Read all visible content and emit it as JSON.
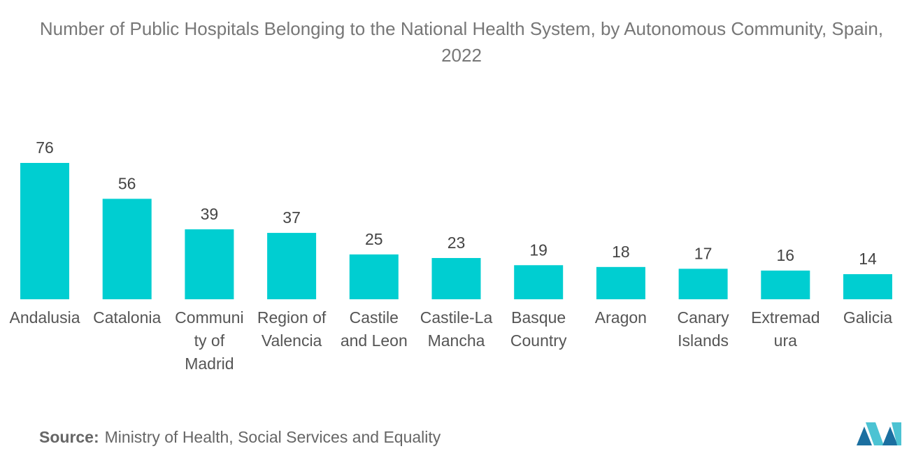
{
  "chart_data": {
    "type": "bar",
    "title": "Number of Public Hospitals Belonging to the National Health System, by Autonomous Community, Spain, 2022",
    "categories": [
      "Andalusia",
      "Catalonia",
      "Community of Madrid",
      "Region of Valencia",
      "Castile and Leon",
      "Castile-La Mancha",
      "Basque Country",
      "Aragon",
      "Canary Islands",
      "Extremadura",
      "Galicia"
    ],
    "values": [
      76,
      56,
      39,
      37,
      25,
      23,
      19,
      18,
      17,
      16,
      14
    ],
    "color": "#00ced1",
    "source_label": "Source:",
    "source": "Ministry of Health, Social Services and Equality"
  }
}
